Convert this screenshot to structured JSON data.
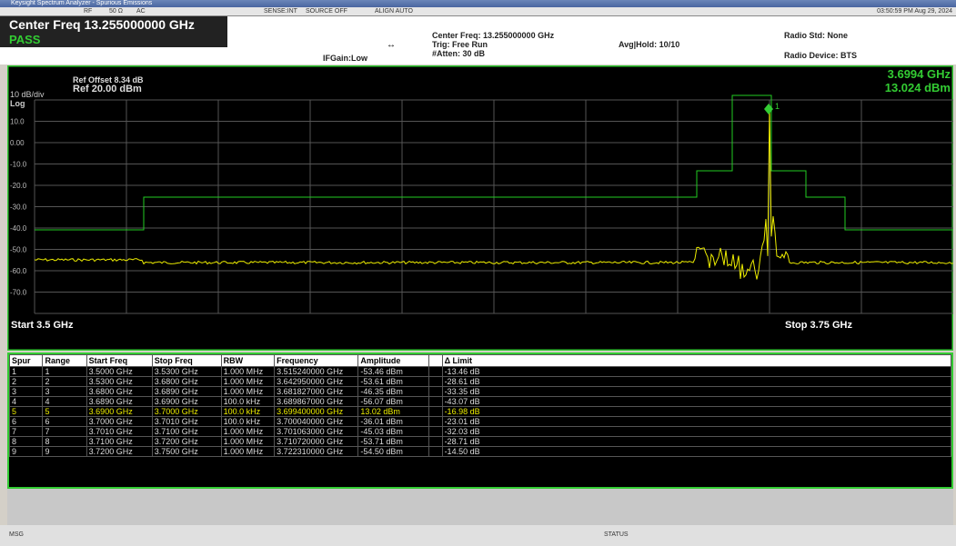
{
  "window": {
    "title": "Keysight Spectrum Analyzer - Spurious Emissions",
    "rf": "RF",
    "impedance": "50 Ω",
    "coupling": "AC",
    "sense": "SENSE:INT",
    "source": "SOURCE OFF",
    "align": "ALIGN AUTO",
    "time": "03:50:59 PM Aug 29, 2024"
  },
  "header": {
    "center_freq": "Center Freq 13.255000000 GHz",
    "pass": "PASS",
    "ifgain": "IFGain:Low",
    "center_freq_info": "Center Freq: 13.255000000 GHz",
    "trig": "Trig: Free Run",
    "atten": "#Atten: 30 dB",
    "avg_hold": "Avg|Hold: 10/10",
    "radio_std": "Radio Std: None",
    "radio_device": "Radio Device: BTS"
  },
  "graph": {
    "ref_offset": "Ref Offset 8.34 dB",
    "ref_level": "Ref 20.00 dBm",
    "scale": "10 dB/div",
    "scale_type": "Log",
    "marker_freq": "3.6994 GHz",
    "marker_amp": "13.024 dBm",
    "marker_label": "1",
    "y_labels": [
      "10.0",
      "0.00",
      "-10.0",
      "-20.0",
      "-30.0",
      "-40.0",
      "-50.0",
      "-60.0",
      "-70.0"
    ],
    "start": "Start 3.5 GHz",
    "stop": "Stop 3.75 GHz"
  },
  "table": {
    "columns": [
      "Spur",
      "Range",
      "Start Freq",
      "Stop Freq",
      "RBW",
      "Frequency",
      "Amplitude",
      "",
      "Δ Limit"
    ],
    "rows": [
      [
        "1",
        "1",
        "3.5000 GHz",
        "3.5300 GHz",
        "1.000 MHz",
        "3.515240000 GHz",
        "-53.46 dBm",
        "",
        "-13.46 dB"
      ],
      [
        "2",
        "2",
        "3.5300 GHz",
        "3.6800 GHz",
        "1.000 MHz",
        "3.642950000 GHz",
        "-53.61 dBm",
        "",
        "-28.61 dB"
      ],
      [
        "3",
        "3",
        "3.6800 GHz",
        "3.6890 GHz",
        "1.000 MHz",
        "3.681827000 GHz",
        "-46.35 dBm",
        "",
        "-33.35 dB"
      ],
      [
        "4",
        "4",
        "3.6890 GHz",
        "3.6900 GHz",
        "100.0 kHz",
        "3.689867000 GHz",
        "-56.07 dBm",
        "",
        "-43.07 dB"
      ],
      [
        "5",
        "5",
        "3.6900 GHz",
        "3.7000 GHz",
        "100.0 kHz",
        "3.699400000 GHz",
        "13.02 dBm",
        "",
        "-16.98 dB"
      ],
      [
        "6",
        "6",
        "3.7000 GHz",
        "3.7010 GHz",
        "100.0 kHz",
        "3.700040000 GHz",
        "-36.01 dBm",
        "",
        "-23.01 dB"
      ],
      [
        "7",
        "7",
        "3.7010 GHz",
        "3.7100 GHz",
        "1.000 MHz",
        "3.701063000 GHz",
        "-45.03 dBm",
        "",
        "-32.03 dB"
      ],
      [
        "8",
        "8",
        "3.7100 GHz",
        "3.7200 GHz",
        "1.000 MHz",
        "3.710720000 GHz",
        "-53.71 dBm",
        "",
        "-28.71 dB"
      ],
      [
        "9",
        "9",
        "3.7200 GHz",
        "3.7500 GHz",
        "1.000 MHz",
        "3.722310000 GHz",
        "-54.50 dBm",
        "",
        "-14.50 dB"
      ]
    ]
  },
  "status": {
    "msg": "MSG",
    "status": "STATUS"
  }
}
